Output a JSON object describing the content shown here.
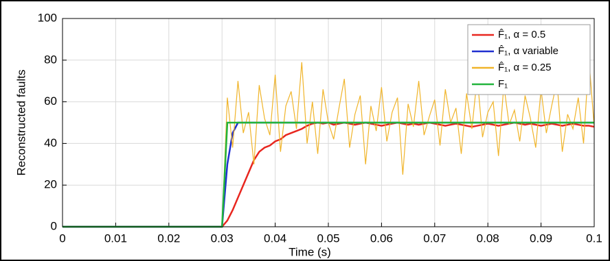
{
  "chart_data": {
    "type": "line",
    "xlabel": "Time (s)",
    "ylabel": "Reconstructed faults",
    "xlim": [
      0,
      0.1
    ],
    "ylim": [
      0,
      100
    ],
    "xticks": [
      0,
      0.01,
      0.02,
      0.03,
      0.04,
      0.05,
      0.06,
      0.07,
      0.08,
      0.09,
      0.1
    ],
    "yticks": [
      0,
      20,
      40,
      60,
      80,
      100
    ],
    "grid": true,
    "legend": "upper right",
    "x": [
      0,
      0.001,
      0.002,
      0.003,
      0.004,
      0.005,
      0.006,
      0.007,
      0.008,
      0.009,
      0.01,
      0.011,
      0.012,
      0.013,
      0.014,
      0.015,
      0.016,
      0.017,
      0.018,
      0.019,
      0.02,
      0.021,
      0.022,
      0.023,
      0.024,
      0.025,
      0.026,
      0.027,
      0.028,
      0.029,
      0.03,
      0.031,
      0.032,
      0.033,
      0.034,
      0.035,
      0.036,
      0.037,
      0.038,
      0.039,
      0.04,
      0.041,
      0.042,
      0.043,
      0.044,
      0.045,
      0.046,
      0.047,
      0.048,
      0.049,
      0.05,
      0.051,
      0.052,
      0.053,
      0.054,
      0.055,
      0.056,
      0.057,
      0.058,
      0.059,
      0.06,
      0.061,
      0.062,
      0.063,
      0.064,
      0.065,
      0.066,
      0.067,
      0.068,
      0.069,
      0.07,
      0.071,
      0.072,
      0.073,
      0.074,
      0.075,
      0.076,
      0.077,
      0.078,
      0.079,
      0.08,
      0.081,
      0.082,
      0.083,
      0.084,
      0.085,
      0.086,
      0.087,
      0.088,
      0.089,
      0.09,
      0.091,
      0.092,
      0.093,
      0.094,
      0.095,
      0.096,
      0.097,
      0.098,
      0.099,
      0.1
    ],
    "series": [
      {
        "name": "F̂₁, α = 0.5",
        "color": "#e8261f",
        "values": [
          0,
          0,
          0,
          0,
          0,
          0,
          0,
          0,
          0,
          0,
          0,
          0,
          0,
          0,
          0,
          0,
          0,
          0,
          0,
          0,
          0,
          0,
          0,
          0,
          0,
          0,
          0,
          0,
          0,
          0,
          0,
          3,
          8,
          14,
          20,
          26,
          32,
          36,
          38,
          39,
          41,
          42,
          44,
          45,
          46,
          47,
          48.5,
          49.5,
          50,
          49.5,
          50,
          49,
          49.5,
          50,
          49.5,
          49,
          49.5,
          50,
          49.5,
          49,
          48.5,
          49,
          49.5,
          50,
          49.5,
          49,
          49.5,
          49,
          49.5,
          50,
          49.5,
          49,
          48.5,
          49,
          49.5,
          49,
          48.5,
          48,
          48.5,
          49,
          49.5,
          49,
          48.5,
          49,
          49.5,
          50,
          49.5,
          49,
          49.5,
          49,
          48.5,
          49,
          49.5,
          49,
          48.5,
          49,
          49.5,
          49,
          48.5,
          48.5,
          48
        ]
      },
      {
        "name": "F̂₁, α variable",
        "color": "#1f2fd0",
        "values": [
          0,
          0,
          0,
          0,
          0,
          0,
          0,
          0,
          0,
          0,
          0,
          0,
          0,
          0,
          0,
          0,
          0,
          0,
          0,
          0,
          0,
          0,
          0,
          0,
          0,
          0,
          0,
          0,
          0,
          0,
          0,
          30,
          45,
          50,
          50,
          50,
          50,
          50,
          50,
          50,
          50,
          50,
          50,
          50,
          50,
          50,
          50,
          50,
          50,
          50,
          50,
          50,
          50,
          50,
          50,
          50,
          50,
          50,
          50,
          50,
          50,
          50,
          50,
          50,
          50,
          50,
          50,
          50,
          50,
          50,
          50,
          50,
          50,
          50,
          50,
          50,
          50,
          50,
          50,
          50,
          50,
          50,
          50,
          50,
          50,
          50,
          50,
          50,
          50,
          50,
          50,
          50,
          50,
          50,
          50,
          50,
          50,
          50,
          50,
          50,
          50
        ]
      },
      {
        "name": "F̂₁, α = 0.25",
        "color": "#f0b429",
        "values": [
          0,
          0,
          0,
          0,
          0,
          0,
          0,
          0,
          0,
          0,
          0,
          0,
          0,
          0,
          0,
          0,
          0,
          0,
          0,
          0,
          0,
          0,
          0,
          0,
          0,
          0,
          0,
          0,
          0,
          0,
          0,
          62,
          38,
          70,
          45,
          55,
          30,
          68,
          52,
          44,
          73,
          36,
          58,
          65,
          47,
          79,
          40,
          60,
          35,
          66,
          50,
          42,
          57,
          71,
          38,
          54,
          63,
          30,
          58,
          46,
          67,
          41,
          55,
          62,
          25,
          59,
          48,
          70,
          44,
          53,
          61,
          39,
          66,
          50,
          57,
          35,
          64,
          47,
          72,
          43,
          55,
          60,
          34,
          68,
          49,
          56,
          41,
          63,
          52,
          38,
          66,
          45,
          58,
          70,
          36,
          54,
          47,
          62,
          40,
          81,
          48
        ]
      },
      {
        "name": "F₁",
        "color": "#22b43c",
        "values": [
          0,
          0,
          0,
          0,
          0,
          0,
          0,
          0,
          0,
          0,
          0,
          0,
          0,
          0,
          0,
          0,
          0,
          0,
          0,
          0,
          0,
          0,
          0,
          0,
          0,
          0,
          0,
          0,
          0,
          0,
          0,
          50,
          50,
          50,
          50,
          50,
          50,
          50,
          50,
          50,
          50,
          50,
          50,
          50,
          50,
          50,
          50,
          50,
          50,
          50,
          50,
          50,
          50,
          50,
          50,
          50,
          50,
          50,
          50,
          50,
          50,
          50,
          50,
          50,
          50,
          50,
          50,
          50,
          50,
          50,
          50,
          50,
          50,
          50,
          50,
          50,
          50,
          50,
          50,
          50,
          50,
          50,
          50,
          50,
          50,
          50,
          50,
          50,
          50,
          50,
          50,
          50,
          50,
          50,
          50,
          50,
          50,
          50,
          50,
          50,
          50
        ]
      }
    ]
  }
}
